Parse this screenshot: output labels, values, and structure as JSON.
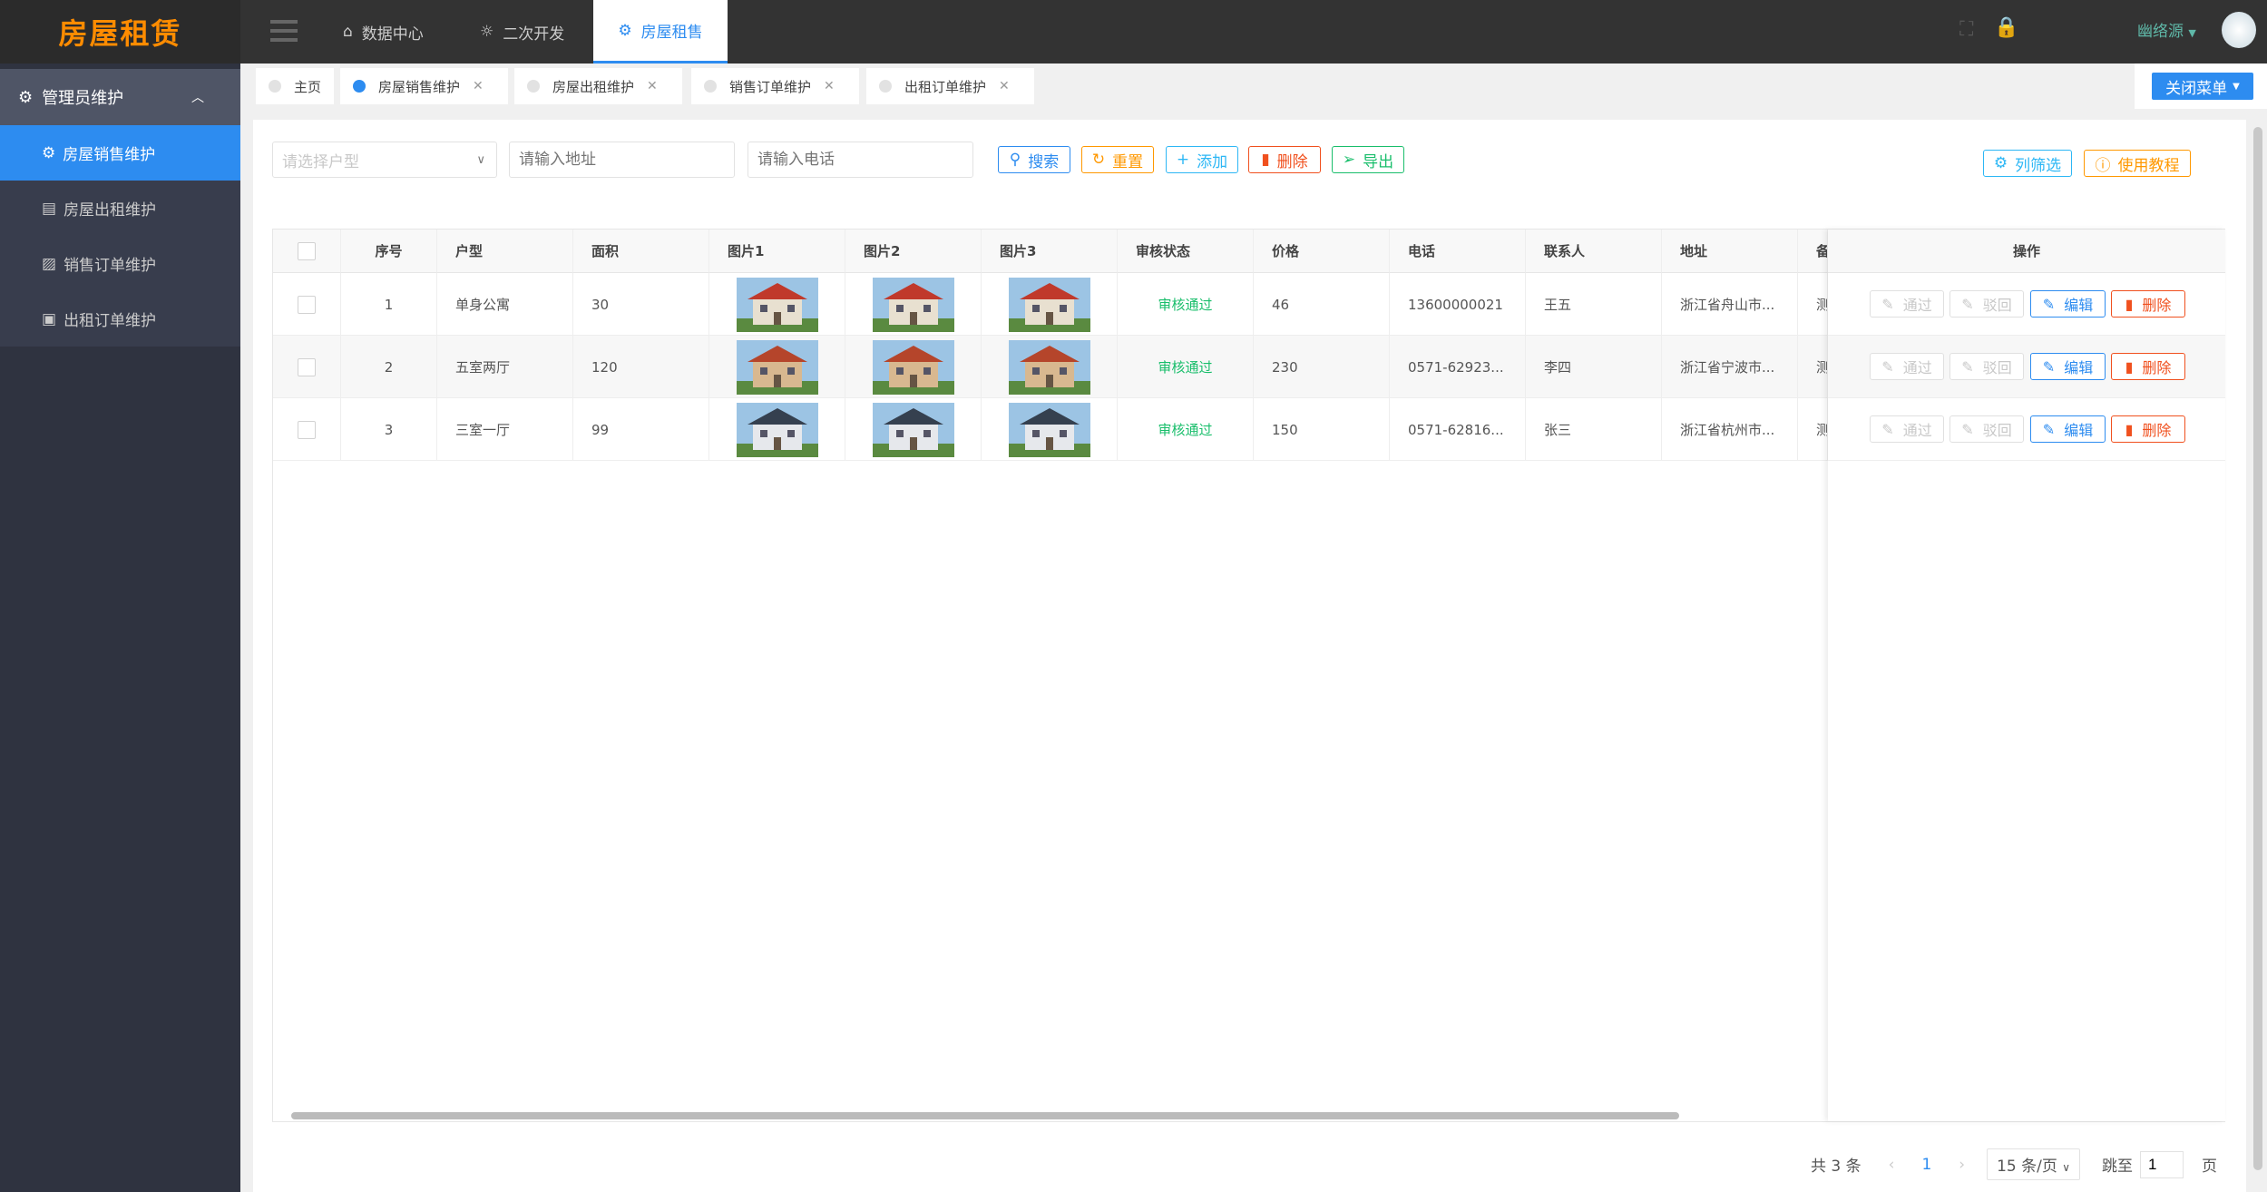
{
  "app": {
    "logo": "房屋租赁"
  },
  "sidebar": {
    "group": "管理员维护",
    "items": [
      {
        "label": "房屋销售维护",
        "icon": "gear-icon",
        "active": true
      },
      {
        "label": "房屋出租维护",
        "icon": "basket-icon"
      },
      {
        "label": "销售订单维护",
        "icon": "chart-icon"
      },
      {
        "label": "出租订单维护",
        "icon": "lock-icon"
      }
    ]
  },
  "topnav": {
    "items": [
      {
        "label": "数据中心",
        "icon": "home-icon"
      },
      {
        "label": "二次开发",
        "icon": "bulb-icon"
      },
      {
        "label": "房屋租售",
        "icon": "gear-icon",
        "active": true
      }
    ],
    "user": "幽络源"
  },
  "tabs": [
    {
      "label": "主页"
    },
    {
      "label": "房屋销售维护",
      "active": true
    },
    {
      "label": "房屋出租维护"
    },
    {
      "label": "销售订单维护"
    },
    {
      "label": "出租订单维护"
    }
  ],
  "close_menu": "关闭菜单",
  "filters": {
    "type_placeholder": "请选择户型",
    "address_placeholder": "请输入地址",
    "phone_placeholder": "请输入电话"
  },
  "toolbar": {
    "search": "搜索",
    "reset": "重置",
    "add": "添加",
    "delete": "删除",
    "export": "导出",
    "columns": "列筛选",
    "tutorial": "使用教程"
  },
  "colors": {
    "primary": "#2d8cf0",
    "warning": "#ff9800",
    "danger": "#f0501e",
    "success": "#19be6b",
    "logo": "#ff8c00"
  },
  "table": {
    "headers": [
      "序号",
      "户型",
      "面积",
      "图片1",
      "图片2",
      "图片3",
      "审核状态",
      "价格",
      "电话",
      "联系人",
      "地址",
      "备",
      "操作"
    ],
    "rows": [
      {
        "no": "1",
        "type": "单身公寓",
        "area": "30",
        "status": "审核通过",
        "price": "46",
        "phone": "13600000021",
        "contact": "王五",
        "address": "浙江省舟山市...",
        "remark": "测"
      },
      {
        "no": "2",
        "type": "五室两厅",
        "area": "120",
        "status": "审核通过",
        "price": "230",
        "phone": "0571-62923...",
        "contact": "李四",
        "address": "浙江省宁波市...",
        "remark": "测"
      },
      {
        "no": "3",
        "type": "三室一厅",
        "area": "99",
        "status": "审核通过",
        "price": "150",
        "phone": "0571-62816...",
        "contact": "张三",
        "address": "浙江省杭州市...",
        "remark": "测"
      }
    ],
    "actions": {
      "approve": "通过",
      "reject": "驳回",
      "edit": "编辑",
      "delete": "删除"
    }
  },
  "pagination": {
    "total": "共 3 条",
    "page": "1",
    "page_size": "15 条/页",
    "goto": "跳至",
    "goto_value": "1",
    "page_unit": "页"
  }
}
